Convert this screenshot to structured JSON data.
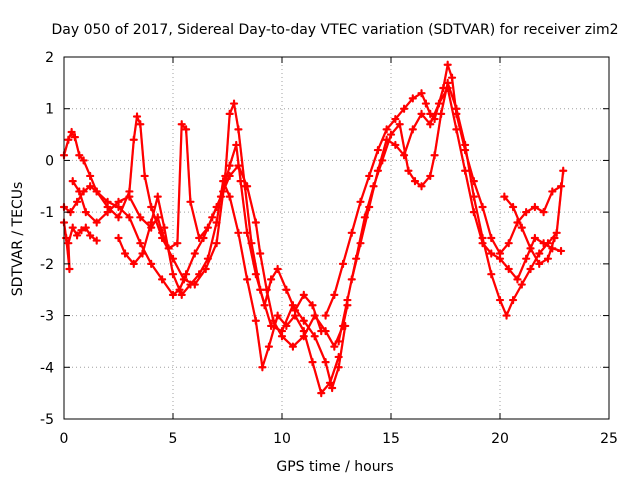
{
  "chart_data": {
    "type": "scatter",
    "title": "Day 050 of 2017, Sidereal Day-to-day VTEC variation (SDTVAR) for receiver zim2",
    "xlabel": "GPS time / hours",
    "ylabel": "SDTVAR / TECUs",
    "xlim": [
      0,
      25
    ],
    "ylim": [
      -5,
      2
    ],
    "xticks": [
      0,
      5,
      10,
      15,
      20,
      25
    ],
    "yticks": [
      -5,
      -4,
      -3,
      -2,
      -1,
      0,
      1,
      2
    ],
    "grid": true,
    "marker": "+",
    "marker_color": "#ff0000",
    "series": [
      {
        "values": [
          [
            0.0,
            -1.2
          ],
          [
            0.1,
            -1.5
          ],
          [
            0.25,
            -2.1
          ],
          [
            0.2,
            -1.6
          ],
          [
            0.4,
            -1.3
          ],
          [
            0.6,
            -1.45
          ],
          [
            0.8,
            -1.35
          ],
          [
            1.0,
            -1.3
          ],
          [
            1.2,
            -1.45
          ],
          [
            1.5,
            -1.55
          ]
        ]
      },
      {
        "values": [
          [
            0.0,
            0.1
          ],
          [
            0.2,
            0.4
          ],
          [
            0.35,
            0.55
          ],
          [
            0.5,
            0.45
          ],
          [
            0.7,
            0.1
          ],
          [
            0.9,
            0.0
          ],
          [
            1.2,
            -0.3
          ],
          [
            1.5,
            -0.6
          ],
          [
            2.0,
            -0.8
          ],
          [
            2.5,
            -0.9
          ],
          [
            3.0,
            -1.1
          ],
          [
            3.5,
            -1.6
          ],
          [
            4.0,
            -2.0
          ],
          [
            4.5,
            -2.3
          ],
          [
            5.0,
            -2.6
          ],
          [
            5.3,
            -2.5
          ],
          [
            5.6,
            -2.2
          ],
          [
            6.0,
            -1.8
          ],
          [
            6.4,
            -1.5
          ],
          [
            6.8,
            -1.1
          ],
          [
            7.2,
            -0.7
          ],
          [
            7.6,
            -0.3
          ],
          [
            8.0,
            -0.1
          ],
          [
            8.4,
            -0.5
          ],
          [
            8.8,
            -1.2
          ],
          [
            9.0,
            -1.8
          ],
          [
            9.3,
            -2.5
          ],
          [
            9.6,
            -3.1
          ],
          [
            10.0,
            -3.4
          ],
          [
            10.5,
            -3.6
          ],
          [
            11.0,
            -3.4
          ],
          [
            11.5,
            -3.0
          ],
          [
            12.0,
            -3.3
          ],
          [
            12.4,
            -3.6
          ],
          [
            12.8,
            -3.2
          ],
          [
            13.0,
            -2.8
          ]
        ]
      },
      {
        "values": [
          [
            0.0,
            -0.9
          ],
          [
            0.3,
            -1.0
          ],
          [
            0.6,
            -0.8
          ],
          [
            0.9,
            -0.6
          ],
          [
            1.2,
            -0.5
          ],
          [
            1.5,
            -0.6
          ],
          [
            2.0,
            -0.9
          ],
          [
            2.5,
            -1.1
          ],
          [
            3.0,
            -0.6
          ],
          [
            3.2,
            0.4
          ],
          [
            3.35,
            0.85
          ],
          [
            3.5,
            0.7
          ],
          [
            3.7,
            -0.3
          ],
          [
            4.0,
            -0.9
          ],
          [
            4.5,
            -1.5
          ],
          [
            5.0,
            -1.9
          ],
          [
            5.5,
            -2.3
          ],
          [
            6.0,
            -2.4
          ],
          [
            6.5,
            -2.1
          ],
          [
            7.0,
            -1.6
          ],
          [
            7.4,
            -0.3
          ],
          [
            7.6,
            0.9
          ],
          [
            7.8,
            1.1
          ],
          [
            8.0,
            0.6
          ],
          [
            8.3,
            -0.5
          ],
          [
            8.6,
            -1.6
          ],
          [
            9.0,
            -2.5
          ],
          [
            9.5,
            -3.2
          ],
          [
            10.0,
            -3.3
          ],
          [
            10.5,
            -2.8
          ],
          [
            11.0,
            -3.1
          ],
          [
            11.5,
            -3.4
          ],
          [
            12.0,
            -3.9
          ],
          [
            12.3,
            -4.4
          ],
          [
            12.6,
            -4.0
          ],
          [
            12.9,
            -3.2
          ]
        ]
      },
      {
        "values": [
          [
            0.4,
            -0.4
          ],
          [
            0.7,
            -0.6
          ],
          [
            1.0,
            -1.0
          ],
          [
            1.5,
            -1.2
          ],
          [
            2.0,
            -1.0
          ],
          [
            2.5,
            -0.8
          ],
          [
            3.0,
            -0.7
          ],
          [
            3.5,
            -1.1
          ],
          [
            4.0,
            -1.3
          ],
          [
            4.3,
            -1.1
          ],
          [
            4.5,
            -1.4
          ],
          [
            4.8,
            -1.7
          ],
          [
            5.2,
            -1.6
          ],
          [
            5.4,
            0.7
          ],
          [
            5.6,
            0.6
          ],
          [
            5.8,
            -0.8
          ],
          [
            6.2,
            -1.5
          ],
          [
            6.6,
            -1.3
          ],
          [
            7.0,
            -0.9
          ],
          [
            7.3,
            -0.6
          ],
          [
            7.6,
            -0.1
          ],
          [
            7.9,
            0.3
          ],
          [
            8.1,
            -0.4
          ],
          [
            8.4,
            -1.4
          ],
          [
            8.8,
            -2.2
          ],
          [
            9.2,
            -2.8
          ],
          [
            9.5,
            -2.3
          ],
          [
            9.8,
            -2.1
          ],
          [
            10.2,
            -2.5
          ],
          [
            10.6,
            -2.9
          ],
          [
            11.0,
            -2.6
          ],
          [
            11.4,
            -2.8
          ],
          [
            11.8,
            -3.3
          ]
        ]
      },
      {
        "values": [
          [
            2.5,
            -1.5
          ],
          [
            2.8,
            -1.8
          ],
          [
            3.2,
            -2.0
          ],
          [
            3.6,
            -1.8
          ],
          [
            4.0,
            -1.2
          ],
          [
            4.3,
            -0.7
          ],
          [
            4.6,
            -1.3
          ],
          [
            5.0,
            -2.2
          ],
          [
            5.4,
            -2.6
          ],
          [
            5.8,
            -2.4
          ],
          [
            6.2,
            -2.2
          ],
          [
            6.6,
            -1.9
          ],
          [
            7.0,
            -1.2
          ],
          [
            7.3,
            -0.4
          ],
          [
            7.6,
            -0.7
          ],
          [
            8.0,
            -1.4
          ],
          [
            8.4,
            -2.3
          ],
          [
            8.8,
            -3.1
          ],
          [
            9.1,
            -4.0
          ],
          [
            9.4,
            -3.6
          ],
          [
            9.8,
            -3.0
          ],
          [
            10.2,
            -3.2
          ],
          [
            10.6,
            -3.0
          ],
          [
            11.0,
            -3.3
          ],
          [
            11.4,
            -3.9
          ],
          [
            11.8,
            -4.5
          ],
          [
            12.2,
            -4.3
          ],
          [
            12.6,
            -3.8
          ]
        ]
      },
      {
        "values": [
          [
            12.0,
            -3.0
          ],
          [
            12.4,
            -2.6
          ],
          [
            12.8,
            -2.0
          ],
          [
            13.2,
            -1.4
          ],
          [
            13.6,
            -0.8
          ],
          [
            14.0,
            -0.3
          ],
          [
            14.4,
            0.2
          ],
          [
            14.8,
            0.6
          ],
          [
            15.2,
            0.8
          ],
          [
            15.6,
            1.0
          ],
          [
            16.0,
            1.2
          ],
          [
            16.4,
            1.3
          ],
          [
            16.6,
            1.1
          ],
          [
            16.8,
            0.9
          ],
          [
            17.0,
            0.8
          ],
          [
            17.4,
            1.4
          ],
          [
            17.6,
            1.85
          ],
          [
            17.8,
            1.6
          ],
          [
            18.0,
            0.9
          ],
          [
            18.4,
            0.2
          ],
          [
            18.8,
            -0.4
          ],
          [
            19.2,
            -0.9
          ],
          [
            19.6,
            -1.5
          ],
          [
            20.0,
            -1.8
          ],
          [
            20.4,
            -1.6
          ],
          [
            20.8,
            -1.2
          ],
          [
            21.2,
            -1.0
          ],
          [
            21.6,
            -0.9
          ],
          [
            22.0,
            -1.0
          ],
          [
            22.4,
            -0.6
          ],
          [
            22.8,
            -0.5
          ]
        ]
      },
      {
        "values": [
          [
            12.6,
            -3.5
          ],
          [
            13.0,
            -2.7
          ],
          [
            13.4,
            -1.9
          ],
          [
            13.8,
            -1.1
          ],
          [
            14.2,
            -0.5
          ],
          [
            14.6,
            0.0
          ],
          [
            15.0,
            0.5
          ],
          [
            15.4,
            0.7
          ],
          [
            15.8,
            -0.2
          ],
          [
            16.1,
            -0.4
          ],
          [
            16.4,
            -0.5
          ],
          [
            16.8,
            -0.3
          ],
          [
            17.0,
            0.1
          ],
          [
            17.3,
            0.9
          ],
          [
            17.6,
            1.5
          ],
          [
            18.0,
            1.0
          ],
          [
            18.4,
            0.3
          ],
          [
            18.8,
            -0.7
          ],
          [
            19.2,
            -1.5
          ],
          [
            19.6,
            -2.2
          ],
          [
            20.0,
            -2.7
          ],
          [
            20.3,
            -3.0
          ],
          [
            20.6,
            -2.7
          ],
          [
            21.0,
            -2.4
          ],
          [
            21.4,
            -2.1
          ],
          [
            21.8,
            -1.8
          ],
          [
            22.2,
            -1.6
          ],
          [
            22.6,
            -1.4
          ],
          [
            22.9,
            -0.2
          ]
        ]
      },
      {
        "values": [
          [
            13.2,
            -2.3
          ],
          [
            13.6,
            -1.6
          ],
          [
            14.0,
            -0.9
          ],
          [
            14.4,
            -0.2
          ],
          [
            14.8,
            0.4
          ],
          [
            15.2,
            0.3
          ],
          [
            15.6,
            0.1
          ],
          [
            16.0,
            0.6
          ],
          [
            16.4,
            0.9
          ],
          [
            16.8,
            0.7
          ],
          [
            17.2,
            1.1
          ],
          [
            17.6,
            1.4
          ],
          [
            18.0,
            0.6
          ],
          [
            18.4,
            -0.2
          ],
          [
            18.8,
            -1.0
          ],
          [
            19.2,
            -1.6
          ],
          [
            19.6,
            -1.8
          ],
          [
            20.0,
            -1.9
          ],
          [
            20.4,
            -2.1
          ],
          [
            20.8,
            -2.3
          ],
          [
            21.2,
            -1.9
          ],
          [
            21.6,
            -1.5
          ],
          [
            22.0,
            -1.6
          ],
          [
            22.4,
            -1.7
          ],
          [
            22.8,
            -1.75
          ]
        ]
      },
      {
        "values": [
          [
            20.2,
            -0.7
          ],
          [
            20.6,
            -0.9
          ],
          [
            21.0,
            -1.3
          ],
          [
            21.4,
            -1.7
          ],
          [
            21.8,
            -2.0
          ],
          [
            22.2,
            -1.9
          ],
          [
            22.5,
            -1.5
          ]
        ]
      }
    ]
  }
}
